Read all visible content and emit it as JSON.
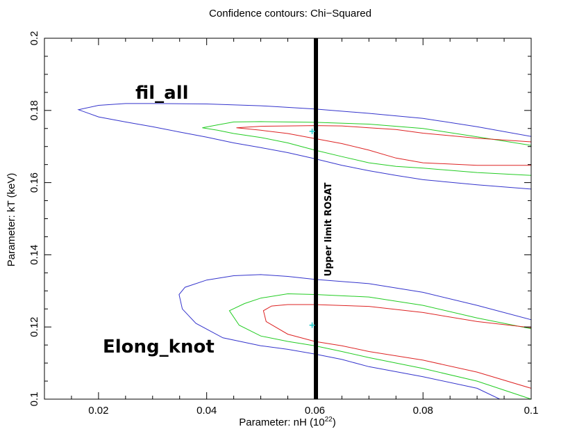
{
  "chart_data": {
    "type": "line",
    "title": "Confidence contours: Chi−Squared",
    "xlabel_main": "Parameter: nH (10",
    "xlabel_sup": "22",
    "xlabel_end": ")",
    "ylabel": "Parameter: kT (keV)",
    "xlim": [
      0.01,
      0.1
    ],
    "ylim": [
      0.1,
      0.2
    ],
    "grid": false,
    "x_ticks": [
      {
        "value": 0.02,
        "label": "0.02"
      },
      {
        "value": 0.04,
        "label": "0.04"
      },
      {
        "value": 0.06,
        "label": "0.06"
      },
      {
        "value": 0.08,
        "label": "0.08"
      },
      {
        "value": 0.1,
        "label": "0.1"
      }
    ],
    "y_ticks": [
      {
        "value": 0.1,
        "label": "0.1"
      },
      {
        "value": 0.12,
        "label": "0.12"
      },
      {
        "value": 0.14,
        "label": "0.14"
      },
      {
        "value": 0.16,
        "label": "0.16"
      },
      {
        "value": 0.18,
        "label": "0.18"
      },
      {
        "value": 0.2,
        "label": "0.2"
      }
    ],
    "colors": {
      "blue": "#3333cc",
      "green": "#22cc22",
      "red": "#dd2222",
      "marker": "#22cccc",
      "line": "#000000"
    },
    "contour_groups": [
      {
        "label": "fil_all",
        "best_fit": [
          0.0595,
          0.1742
        ],
        "contours": [
          {
            "color": "#3333cc",
            "closed": false,
            "points": [
              [
                0.1,
                0.1728
              ],
              [
                0.09,
                0.1755
              ],
              [
                0.08,
                0.1778
              ],
              [
                0.07,
                0.1792
              ],
              [
                0.06,
                0.1804
              ],
              [
                0.05,
                0.1813
              ],
              [
                0.04,
                0.1818
              ],
              [
                0.03,
                0.1819
              ],
              [
                0.025,
                0.1819
              ],
              [
                0.02,
                0.1814
              ],
              [
                0.0163,
                0.1802
              ],
              [
                0.02,
                0.1782
              ],
              [
                0.025,
                0.1768
              ],
              [
                0.03,
                0.1755
              ],
              [
                0.035,
                0.174
              ],
              [
                0.04,
                0.1726
              ],
              [
                0.045,
                0.171
              ],
              [
                0.05,
                0.1697
              ],
              [
                0.055,
                0.1683
              ],
              [
                0.06,
                0.1666
              ],
              [
                0.065,
                0.1648
              ],
              [
                0.07,
                0.1633
              ],
              [
                0.075,
                0.162
              ],
              [
                0.08,
                0.1608
              ],
              [
                0.09,
                0.1594
              ],
              [
                0.1,
                0.1582
              ]
            ]
          },
          {
            "color": "#22cc22",
            "closed": false,
            "points": [
              [
                0.1,
                0.1703
              ],
              [
                0.09,
                0.1727
              ],
              [
                0.08,
                0.175
              ],
              [
                0.07,
                0.1762
              ],
              [
                0.06,
                0.1767
              ],
              [
                0.05,
                0.1769
              ],
              [
                0.045,
                0.1768
              ],
              [
                0.042,
                0.176
              ],
              [
                0.0392,
                0.1752
              ],
              [
                0.042,
                0.1745
              ],
              [
                0.045,
                0.1736
              ],
              [
                0.05,
                0.1725
              ],
              [
                0.055,
                0.171
              ],
              [
                0.06,
                0.169
              ],
              [
                0.065,
                0.1672
              ],
              [
                0.07,
                0.1655
              ],
              [
                0.075,
                0.1645
              ],
              [
                0.08,
                0.164
              ],
              [
                0.09,
                0.1628
              ],
              [
                0.1,
                0.162
              ]
            ]
          },
          {
            "color": "#dd2222",
            "closed": false,
            "points": [
              [
                0.1,
                0.1713
              ],
              [
                0.09,
                0.1723
              ],
              [
                0.08,
                0.1737
              ],
              [
                0.075,
                0.1747
              ],
              [
                0.07,
                0.1752
              ],
              [
                0.065,
                0.1757
              ],
              [
                0.06,
                0.1758
              ],
              [
                0.055,
                0.1757
              ],
              [
                0.05,
                0.1756
              ],
              [
                0.0455,
                0.1752
              ],
              [
                0.05,
                0.1745
              ],
              [
                0.055,
                0.1736
              ],
              [
                0.06,
                0.1722
              ],
              [
                0.065,
                0.1708
              ],
              [
                0.07,
                0.169
              ],
              [
                0.075,
                0.1668
              ],
              [
                0.08,
                0.1655
              ],
              [
                0.09,
                0.1648
              ],
              [
                0.1,
                0.1648
              ]
            ]
          }
        ]
      },
      {
        "label": "Elong_knot",
        "best_fit": [
          0.0595,
          0.1205
        ],
        "contours": [
          {
            "color": "#3333cc",
            "closed": false,
            "points": [
              [
                0.1,
                0.122
              ],
              [
                0.09,
                0.126
              ],
              [
                0.08,
                0.1296
              ],
              [
                0.07,
                0.132
              ],
              [
                0.06,
                0.1332
              ],
              [
                0.055,
                0.134
              ],
              [
                0.05,
                0.1345
              ],
              [
                0.045,
                0.1342
              ],
              [
                0.04,
                0.133
              ],
              [
                0.036,
                0.131
              ],
              [
                0.0349,
                0.129
              ],
              [
                0.0355,
                0.125
              ],
              [
                0.038,
                0.121
              ],
              [
                0.043,
                0.117
              ],
              [
                0.05,
                0.1148
              ],
              [
                0.055,
                0.1138
              ],
              [
                0.06,
                0.1125
              ],
              [
                0.065,
                0.111
              ],
              [
                0.07,
                0.109
              ],
              [
                0.08,
                0.1062
              ],
              [
                0.09,
                0.103
              ],
              [
                0.0942,
                0.1
              ]
            ]
          },
          {
            "color": "#22cc22",
            "closed": false,
            "points": [
              [
                0.1,
                0.1195
              ],
              [
                0.09,
                0.1225
              ],
              [
                0.08,
                0.126
              ],
              [
                0.07,
                0.1283
              ],
              [
                0.06,
                0.129
              ],
              [
                0.055,
                0.1292
              ],
              [
                0.05,
                0.128
              ],
              [
                0.047,
                0.1265
              ],
              [
                0.0442,
                0.1245
              ],
              [
                0.046,
                0.1205
              ],
              [
                0.05,
                0.1175
              ],
              [
                0.055,
                0.116
              ],
              [
                0.06,
                0.1148
              ],
              [
                0.065,
                0.1132
              ],
              [
                0.07,
                0.1115
              ],
              [
                0.08,
                0.1085
              ],
              [
                0.09,
                0.105
              ],
              [
                0.1,
                0.1
              ]
            ]
          },
          {
            "color": "#dd2222",
            "closed": false,
            "points": [
              [
                0.1,
                0.1198
              ],
              [
                0.09,
                0.1215
              ],
              [
                0.08,
                0.124
              ],
              [
                0.07,
                0.1257
              ],
              [
                0.06,
                0.1262
              ],
              [
                0.055,
                0.1262
              ],
              [
                0.052,
                0.1258
              ],
              [
                0.0505,
                0.1245
              ],
              [
                0.051,
                0.1215
              ],
              [
                0.055,
                0.118
              ],
              [
                0.06,
                0.116
              ],
              [
                0.065,
                0.1148
              ],
              [
                0.07,
                0.1132
              ],
              [
                0.08,
                0.1108
              ],
              [
                0.09,
                0.1075
              ],
              [
                0.1,
                0.103
              ]
            ]
          }
        ]
      }
    ],
    "vertical_line": {
      "x": 0.0602,
      "label": "Upper limit ROSAT"
    }
  }
}
